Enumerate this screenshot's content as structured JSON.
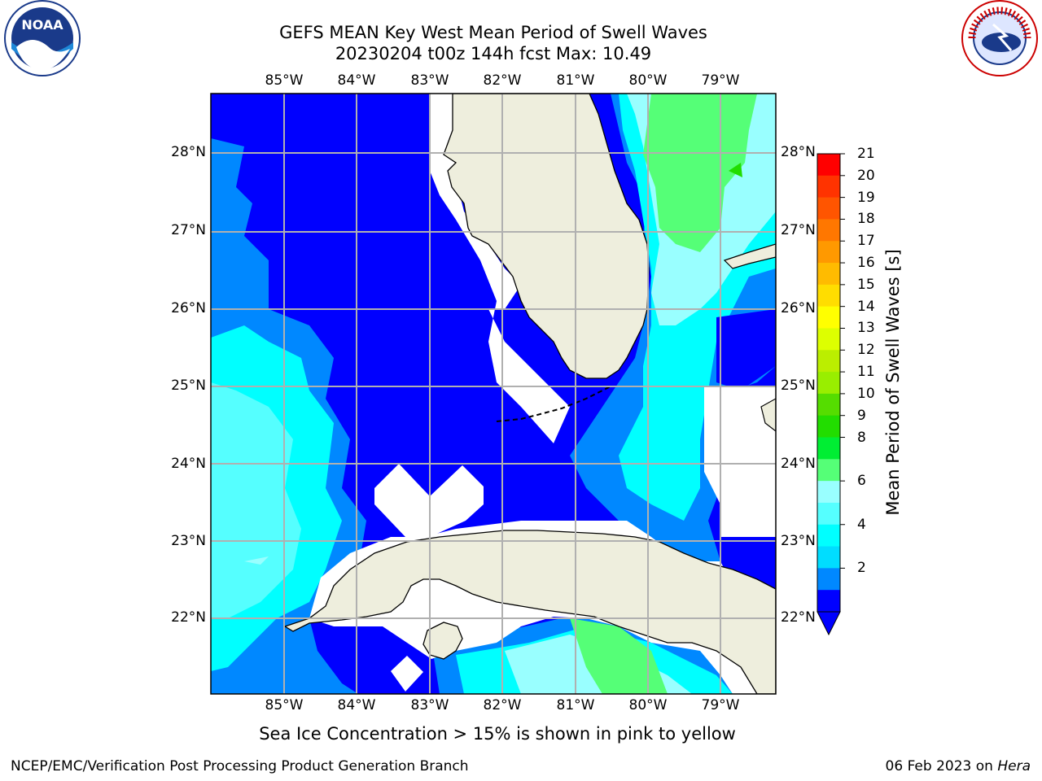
{
  "title_line1": "GEFS MEAN Key West Mean Period of Swell Waves",
  "title_line2": "20230204 t00z 144h fcst   Max: 10.49",
  "lon_labels": [
    "85°W",
    "84°W",
    "83°W",
    "82°W",
    "81°W",
    "80°W",
    "79°W"
  ],
  "lat_labels": [
    "28°N",
    "27°N",
    "26°N",
    "25°N",
    "24°N",
    "23°N",
    "22°N"
  ],
  "colorbar": {
    "label": "Mean Period of Swell Waves [s]",
    "ticks": [
      "21",
      "20",
      "19",
      "18",
      "17",
      "16",
      "15",
      "14",
      "13",
      "12",
      "11",
      "10",
      "9",
      "8",
      "6",
      "4",
      "2"
    ],
    "colors": [
      "#ff0000",
      "#ff3300",
      "#ff5500",
      "#ff7700",
      "#ff9900",
      "#ffbb00",
      "#ffdd00",
      "#ffff00",
      "#ddff00",
      "#bbee00",
      "#99ee00",
      "#55dd00",
      "#22dd00",
      "#00ee33",
      "#55ff77",
      "#99ffff",
      "#55ffff",
      "#00ffff",
      "#00ddff",
      "#0088ff",
      "#0000ff"
    ]
  },
  "map_colors": {
    "land": "#eeeedd",
    "deep": "#0000ff",
    "blue2": "#0088ff",
    "cyan": "#00ffff",
    "lightcyan": "#99ffff",
    "green": "#55ff77"
  },
  "note": "Sea Ice Concentration > 15% is shown in pink to yellow",
  "footer_left": "NCEP/EMC/Verification Post Processing Product Generation Branch",
  "footer_date": "06 Feb 2023 on ",
  "footer_host": "Hera",
  "logo_left_text": "NOAA",
  "logo_right_text": "NATIONAL WEATHER SERVICE"
}
